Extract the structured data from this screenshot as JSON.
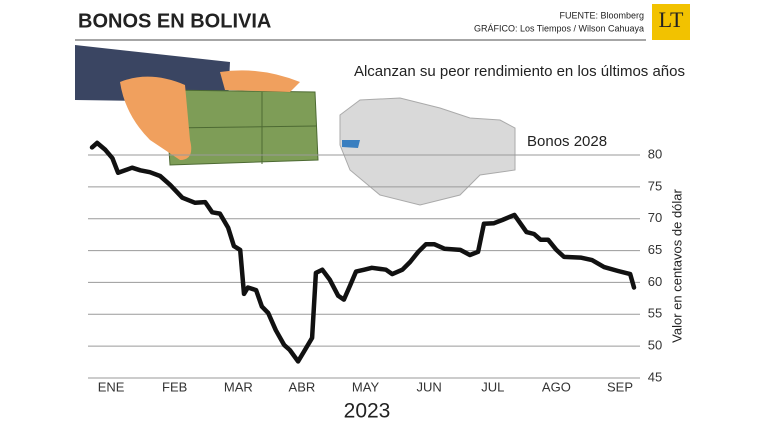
{
  "chart_data": {
    "type": "line",
    "title": "BONOS EN BOLIVIA",
    "source": "FUENTE: Bloomberg",
    "credit": "GRÁFICO: Los Tiempos / Wilson Cahuaya",
    "logo": "LT",
    "subtitle": "Alcanzan su peor rendimiento en los últimos años",
    "xlabel": "2023",
    "ylabel": "Valor en centavos de dólar",
    "categories": [
      "ENE",
      "FEB",
      "MAR",
      "ABR",
      "MAY",
      "JUN",
      "JUL",
      "AGO",
      "SEP"
    ],
    "xlim": [
      -0.3,
      8.22
    ],
    "ylim": [
      45,
      80
    ],
    "yticks": [
      45,
      50,
      55,
      60,
      65,
      70,
      75,
      80
    ],
    "grid": true,
    "series": [
      {
        "name": "Bonos 2028",
        "color": "#111111",
        "x": [
          -0.3,
          -0.22,
          -0.09,
          0.02,
          0.11,
          0.22,
          0.33,
          0.46,
          0.61,
          0.77,
          0.93,
          1.12,
          1.32,
          1.48,
          1.59,
          1.71,
          1.84,
          1.93,
          2.03,
          2.09,
          2.15,
          2.28,
          2.37,
          2.47,
          2.59,
          2.72,
          2.81,
          2.94,
          3.03,
          3.16,
          3.22,
          3.32,
          3.44,
          3.57,
          3.66,
          3.76,
          3.85,
          3.98,
          4.1,
          4.32,
          4.42,
          4.58,
          4.7,
          4.83,
          4.95,
          5.08,
          5.24,
          5.49,
          5.64,
          5.77,
          5.86,
          6.02,
          6.15,
          6.34,
          6.53,
          6.65,
          6.75,
          6.87,
          7.0,
          7.12,
          7.38,
          7.56,
          7.75,
          7.97,
          8.16,
          8.22
        ],
        "values": [
          81.2,
          81.9,
          80.8,
          79.5,
          77.2,
          77.6,
          78,
          77.6,
          77.3,
          76.7,
          75.3,
          73.3,
          72.5,
          72.6,
          71,
          70.8,
          68.6,
          65.7,
          65.1,
          58.2,
          59.2,
          58.8,
          56.2,
          55.2,
          52.5,
          50.2,
          49.4,
          47.6,
          49.1,
          51.3,
          61.5,
          62,
          60.4,
          57.9,
          57.3,
          59.6,
          61.7,
          62,
          62.3,
          62,
          61.3,
          62,
          63.2,
          64.8,
          66,
          66,
          65.3,
          65.1,
          64.3,
          64.8,
          69.2,
          69.3,
          69.8,
          70.6,
          67.9,
          67.6,
          66.7,
          66.7,
          65.1,
          64,
          63.9,
          63.5,
          62.4,
          61.8,
          61.3,
          59.2
        ]
      }
    ]
  }
}
